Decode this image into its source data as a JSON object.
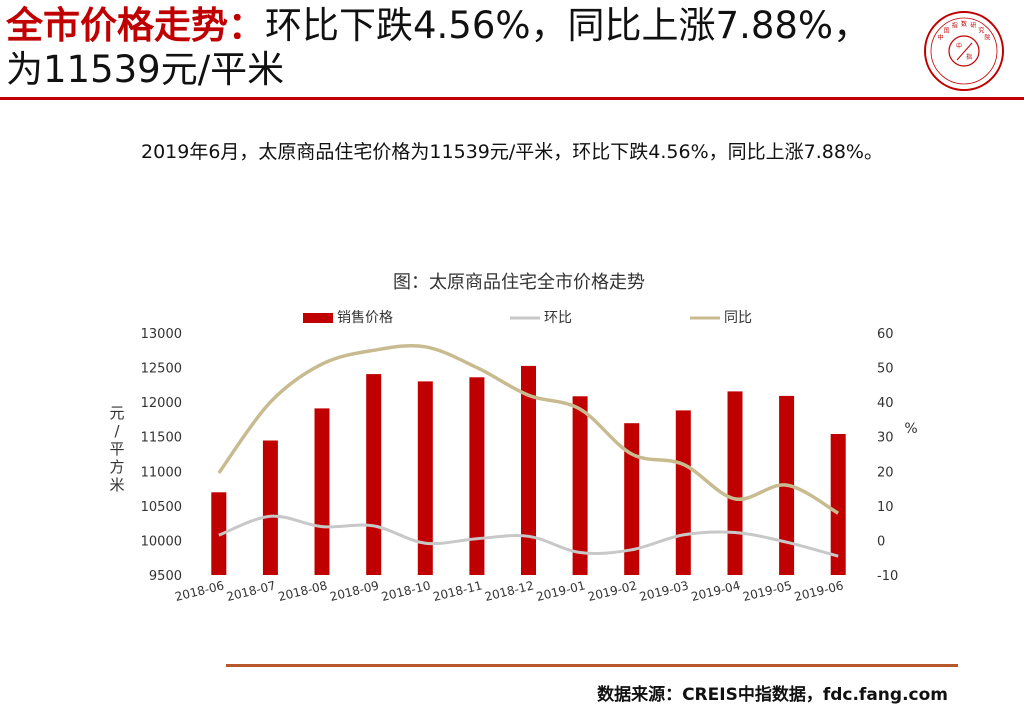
{
  "header": {
    "title_highlight": "全市价格走势：",
    "title_rest": "环比下跌4.56%，同比上涨7.88%，为11539元/平米"
  },
  "summary": "2019年6月，太原商品住宅价格为11539元/平米，环比下跌4.56%，同比上涨7.88%。",
  "footer": {
    "source": "数据来源：CREIS中指数据，fdc.fang.com"
  },
  "logo": {
    "seal_chars": [
      "中",
      "国",
      "指",
      "数",
      "研",
      "究",
      "院"
    ],
    "center_chars": [
      "中",
      "指"
    ]
  },
  "colors": {
    "accent": "#c00000",
    "bar": "#c00000",
    "mom_line": "#c8c8c8",
    "yoy_line": "#c9bb90",
    "source_rule": "#b8572a"
  },
  "chart_data": {
    "type": "bar",
    "title": "图：太原商品住宅全市价格走势",
    "categories": [
      "2018-06",
      "2018-07",
      "2018-08",
      "2018-09",
      "2018-10",
      "2018-11",
      "2018-12",
      "2019-01",
      "2019-02",
      "2019-03",
      "2019-04",
      "2019-05",
      "2019-06"
    ],
    "legend_position": "top",
    "y_left": {
      "label_chars": [
        "元",
        "/",
        "平",
        "方",
        "米"
      ],
      "min": 9500,
      "max": 13000,
      "step": 500
    },
    "y_right": {
      "label": "%",
      "min": -10,
      "max": 60,
      "step": 10
    },
    "series": [
      {
        "name": "销售价格",
        "type": "bar",
        "axis": "left",
        "values": [
          10696,
          11445,
          11910,
          12405,
          12300,
          12360,
          12524,
          12085,
          11695,
          11880,
          12155,
          12090,
          11539
        ]
      },
      {
        "name": "环比",
        "type": "line",
        "axis": "right",
        "values": [
          1.5,
          7.0,
          4.0,
          4.2,
          -0.8,
          0.5,
          1.2,
          -3.5,
          -2.7,
          1.6,
          2.3,
          -0.5,
          -4.56
        ]
      },
      {
        "name": "同比",
        "type": "line",
        "axis": "right",
        "values": [
          19.5,
          40.0,
          51.0,
          55.0,
          56.0,
          50.0,
          42.0,
          38.0,
          25.0,
          22.0,
          12.0,
          16.0,
          7.88
        ]
      }
    ]
  }
}
